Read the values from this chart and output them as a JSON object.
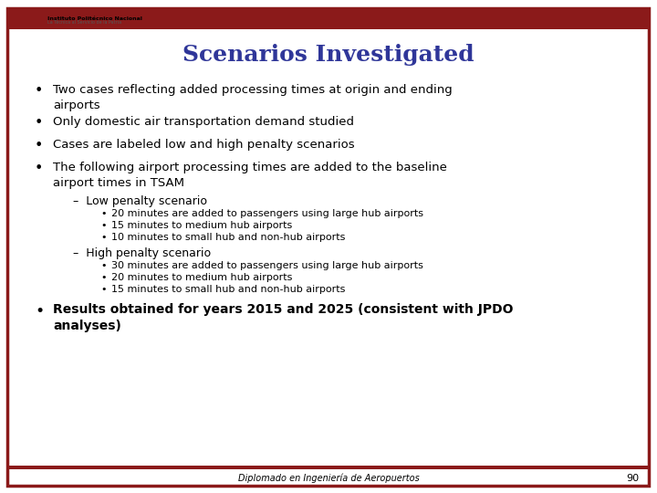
{
  "title": "Scenarios Investigated",
  "title_color": "#2F3699",
  "title_fontsize": 18,
  "background_color": "#FFFFFF",
  "border_color": "#8B1A1A",
  "footer_text": "Diplomado en Ingeniería de Aeropuertos",
  "page_number": "90",
  "bullet_color": "#000000",
  "bullet_fontsize": 9.5,
  "sub_bullet_fontsize": 8.0,
  "dash_fontsize": 9.0,
  "header_bar_color": "#8B1A1A",
  "bullets": [
    "Two cases reflecting added processing times at origin and ending\nairports",
    "Only domestic air transportation demand studied",
    "Cases are labeled low and high penalty scenarios",
    "The following airport processing times are added to the baseline\nairport times in TSAM"
  ],
  "sub_sections": [
    {
      "header": "Low penalty scenario",
      "items": [
        "20 minutes are added to passengers using large hub airports",
        "15 minutes to medium hub airports",
        "10 minutes to small hub and non-hub airports"
      ]
    },
    {
      "header": "High penalty scenario",
      "items": [
        "30 minutes are added to passengers using large hub airports",
        "20 minutes to medium hub airports",
        "15 minutes to small hub and non-hub airports"
      ]
    }
  ],
  "last_bullet": "Results obtained for years 2015 and 2025 (consistent with JPDO\nanalyses)"
}
